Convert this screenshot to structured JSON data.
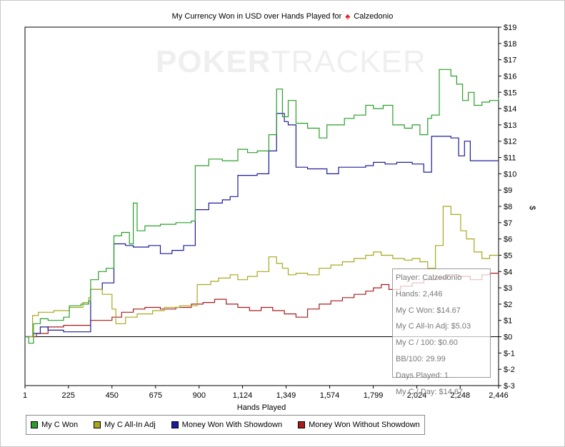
{
  "chart_data": {
    "type": "line",
    "title_text": "My Currency Won in USD over Hands Played for",
    "title_player": "Calzedonio",
    "title_icon": "spade-icon",
    "xlabel": "Hands Played",
    "ylabel": "$",
    "xlim": [
      1,
      2446
    ],
    "ylim": [
      -3,
      19
    ],
    "x_ticks": [
      1,
      225,
      450,
      675,
      900,
      1124,
      1349,
      1574,
      1799,
      2024,
      2248,
      2446
    ],
    "x_tick_labels": [
      "1",
      "225",
      "450",
      "675",
      "900",
      "1,124",
      "1,349",
      "1,574",
      "1,799",
      "2,024",
      "2,248",
      "2,446"
    ],
    "y_ticks": [
      -3,
      -2,
      -1,
      0,
      1,
      2,
      3,
      4,
      5,
      6,
      7,
      8,
      9,
      10,
      11,
      12,
      13,
      14,
      15,
      16,
      17,
      18,
      19
    ],
    "y_tick_labels": [
      "$-3",
      "$-2",
      "$-1",
      "$0",
      "$1",
      "$2",
      "$3",
      "$4",
      "$5",
      "$6",
      "$7",
      "$8",
      "$9",
      "$10",
      "$11",
      "$12",
      "$13",
      "$14",
      "$15",
      "$16",
      "$17",
      "$18",
      "$19"
    ],
    "legend_position": "bottom-left",
    "series": [
      {
        "name": "My C Won",
        "color": "#2a9e2a",
        "points": [
          [
            1,
            0
          ],
          [
            20,
            -0.4
          ],
          [
            45,
            0.8
          ],
          [
            80,
            1.1
          ],
          [
            120,
            1.0
          ],
          [
            200,
            1.2
          ],
          [
            230,
            1.9
          ],
          [
            290,
            2.0
          ],
          [
            330,
            2.2
          ],
          [
            340,
            3.5
          ],
          [
            380,
            4.0
          ],
          [
            420,
            4.2
          ],
          [
            460,
            6.2
          ],
          [
            500,
            6.4
          ],
          [
            540,
            5.7
          ],
          [
            560,
            8.2
          ],
          [
            580,
            6.5
          ],
          [
            620,
            6.8
          ],
          [
            700,
            6.9
          ],
          [
            780,
            7.0
          ],
          [
            860,
            7.1
          ],
          [
            880,
            10.5
          ],
          [
            950,
            10.9
          ],
          [
            1020,
            10.8
          ],
          [
            1100,
            11.5
          ],
          [
            1150,
            11.3
          ],
          [
            1200,
            11.4
          ],
          [
            1260,
            12.4
          ],
          [
            1300,
            15.2
          ],
          [
            1330,
            13.5
          ],
          [
            1360,
            14.5
          ],
          [
            1400,
            13.1
          ],
          [
            1460,
            12.8
          ],
          [
            1520,
            12.2
          ],
          [
            1560,
            13.0
          ],
          [
            1600,
            13.0
          ],
          [
            1650,
            13.4
          ],
          [
            1700,
            13.6
          ],
          [
            1760,
            14.2
          ],
          [
            1800,
            14.0
          ],
          [
            1850,
            14.2
          ],
          [
            1900,
            13.0
          ],
          [
            1960,
            12.8
          ],
          [
            2000,
            13.0
          ],
          [
            2040,
            12.4
          ],
          [
            2080,
            13.4
          ],
          [
            2100,
            13.6
          ],
          [
            2140,
            16.4
          ],
          [
            2200,
            16.0
          ],
          [
            2230,
            15.5
          ],
          [
            2260,
            14.5
          ],
          [
            2290,
            15.0
          ],
          [
            2320,
            14.2
          ],
          [
            2360,
            14.4
          ],
          [
            2400,
            14.5
          ],
          [
            2446,
            14.67
          ]
        ]
      },
      {
        "name": "My C All-In Adj",
        "color": "#a8a81e",
        "points": [
          [
            1,
            0
          ],
          [
            40,
            1.3
          ],
          [
            70,
            1.5
          ],
          [
            150,
            1.6
          ],
          [
            230,
            1.8
          ],
          [
            300,
            2.1
          ],
          [
            330,
            2.4
          ],
          [
            340,
            2.9
          ],
          [
            400,
            2.6
          ],
          [
            450,
            1.7
          ],
          [
            470,
            0.8
          ],
          [
            520,
            1.2
          ],
          [
            580,
            1.4
          ],
          [
            660,
            1.6
          ],
          [
            720,
            1.8
          ],
          [
            800,
            1.9
          ],
          [
            860,
            1.9
          ],
          [
            890,
            3.2
          ],
          [
            960,
            3.4
          ],
          [
            1000,
            3.6
          ],
          [
            1060,
            3.8
          ],
          [
            1100,
            3.5
          ],
          [
            1150,
            3.7
          ],
          [
            1200,
            4.0
          ],
          [
            1260,
            4.9
          ],
          [
            1300,
            4.5
          ],
          [
            1330,
            4.2
          ],
          [
            1360,
            3.8
          ],
          [
            1400,
            3.9
          ],
          [
            1460,
            3.8
          ],
          [
            1520,
            4.2
          ],
          [
            1580,
            4.4
          ],
          [
            1640,
            4.6
          ],
          [
            1700,
            4.8
          ],
          [
            1760,
            5.0
          ],
          [
            1800,
            5.2
          ],
          [
            1840,
            5.0
          ],
          [
            1900,
            4.8
          ],
          [
            1960,
            4.7
          ],
          [
            2000,
            4.8
          ],
          [
            2040,
            4.6
          ],
          [
            2080,
            4.2
          ],
          [
            2120,
            5.6
          ],
          [
            2160,
            8.0
          ],
          [
            2200,
            7.5
          ],
          [
            2250,
            6.5
          ],
          [
            2280,
            6.0
          ],
          [
            2320,
            5.2
          ],
          [
            2360,
            4.8
          ],
          [
            2400,
            5.0
          ],
          [
            2446,
            5.03
          ]
        ]
      },
      {
        "name": "Money Won With Showdown",
        "color": "#1c1c9a",
        "points": [
          [
            1,
            0
          ],
          [
            40,
            0.2
          ],
          [
            80,
            0.6
          ],
          [
            120,
            0.4
          ],
          [
            200,
            0.3
          ],
          [
            320,
            0.3
          ],
          [
            340,
            2.9
          ],
          [
            400,
            3.3
          ],
          [
            460,
            5.7
          ],
          [
            520,
            5.6
          ],
          [
            560,
            5.5
          ],
          [
            600,
            5.5
          ],
          [
            640,
            5.6
          ],
          [
            700,
            5.1
          ],
          [
            760,
            5.3
          ],
          [
            820,
            5.6
          ],
          [
            880,
            7.8
          ],
          [
            950,
            8.2
          ],
          [
            1020,
            8.4
          ],
          [
            1060,
            8.6
          ],
          [
            1100,
            9.9
          ],
          [
            1150,
            9.9
          ],
          [
            1200,
            10.0
          ],
          [
            1260,
            11.4
          ],
          [
            1300,
            13.7
          ],
          [
            1340,
            13.2
          ],
          [
            1360,
            13.0
          ],
          [
            1400,
            10.4
          ],
          [
            1460,
            10.3
          ],
          [
            1520,
            10.3
          ],
          [
            1560,
            10.0
          ],
          [
            1620,
            10.4
          ],
          [
            1700,
            10.4
          ],
          [
            1760,
            10.5
          ],
          [
            1800,
            10.7
          ],
          [
            1860,
            10.6
          ],
          [
            1920,
            10.7
          ],
          [
            2000,
            10.6
          ],
          [
            2060,
            10.1
          ],
          [
            2100,
            12.3
          ],
          [
            2160,
            12.3
          ],
          [
            2200,
            12.2
          ],
          [
            2240,
            11.1
          ],
          [
            2270,
            12.0
          ],
          [
            2300,
            10.8
          ],
          [
            2360,
            10.8
          ],
          [
            2446,
            10.8
          ]
        ]
      },
      {
        "name": "Money Won Without Showdown",
        "color": "#a81c1c",
        "points": [
          [
            1,
            0
          ],
          [
            60,
            0.2
          ],
          [
            120,
            0.6
          ],
          [
            200,
            0.7
          ],
          [
            280,
            0.7
          ],
          [
            340,
            1.0
          ],
          [
            400,
            1.0
          ],
          [
            450,
            1.2
          ],
          [
            500,
            1.5
          ],
          [
            560,
            1.7
          ],
          [
            620,
            1.8
          ],
          [
            700,
            1.7
          ],
          [
            780,
            1.8
          ],
          [
            860,
            2.0
          ],
          [
            920,
            2.1
          ],
          [
            980,
            2.3
          ],
          [
            1040,
            2.0
          ],
          [
            1100,
            1.8
          ],
          [
            1160,
            1.6
          ],
          [
            1220,
            1.8
          ],
          [
            1280,
            1.6
          ],
          [
            1340,
            1.4
          ],
          [
            1400,
            1.2
          ],
          [
            1460,
            1.7
          ],
          [
            1520,
            2.0
          ],
          [
            1580,
            2.2
          ],
          [
            1640,
            2.4
          ],
          [
            1700,
            2.6
          ],
          [
            1760,
            2.8
          ],
          [
            1800,
            3.0
          ],
          [
            1840,
            3.2
          ],
          [
            1880,
            2.9
          ],
          [
            1940,
            3.1
          ],
          [
            2000,
            3.3
          ],
          [
            2060,
            3.5
          ],
          [
            2120,
            3.6
          ],
          [
            2180,
            3.8
          ],
          [
            2240,
            3.7
          ],
          [
            2300,
            3.5
          ],
          [
            2360,
            3.8
          ],
          [
            2400,
            3.9
          ],
          [
            2446,
            3.87
          ]
        ]
      }
    ],
    "tooltip": [
      "Player: Calzedonio",
      "Hands: 2,446",
      "My C Won: $14.67",
      "My C All-In Adj: $5.03",
      "My C / 100: $0.60",
      "BB/100: 29.99",
      "Days Played: 1",
      "My C / Day: $14.67"
    ],
    "watermark": {
      "bold": "POKER",
      "thin": "TRACKER"
    }
  }
}
